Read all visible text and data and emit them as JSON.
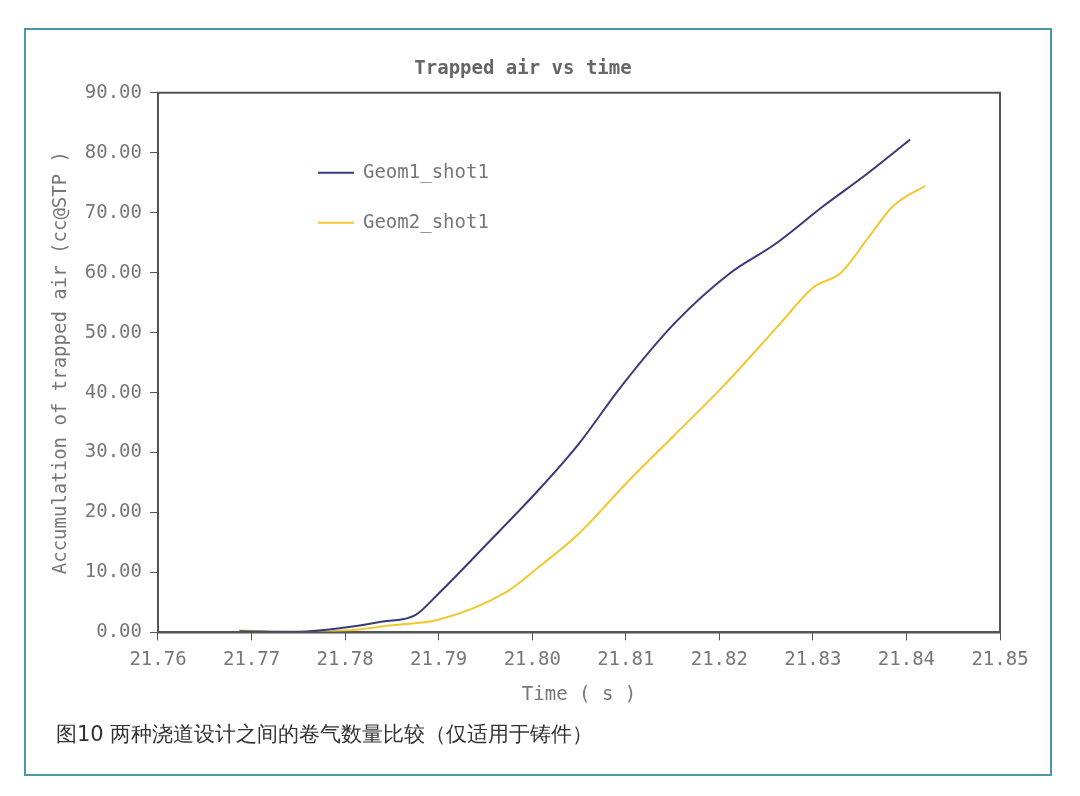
{
  "chart_data": {
    "type": "line",
    "title": "Trapped air vs time",
    "xlabel": "Time ( s )",
    "ylabel": "Accumulation of trapped air (cc@STP )",
    "annotations": [
      "图10 两种浇道设计之间的卷气数量比较（仅适用于铸件）"
    ],
    "series": [
      {
        "name": "Geom1_shot1",
        "color": "#3a3a78",
        "x": [
          21.7687,
          21.775,
          21.78,
          21.784,
          21.7875,
          21.79,
          21.795,
          21.8007,
          21.805,
          21.8095,
          21.8153,
          21.8212,
          21.8259,
          21.8312,
          21.8358,
          21.8404
        ],
        "values": [
          0.2,
          0.1,
          0.8,
          1.8,
          2.9,
          6.5,
          14.5,
          23.8,
          31.5,
          41,
          51.7,
          60,
          64.7,
          71.2,
          76.5,
          82.2
        ]
      },
      {
        "name": "Geom2_shot1",
        "color": "#f0c832",
        "x": [
          21.7687,
          21.775,
          21.78,
          21.785,
          21.79,
          21.7972,
          21.8007,
          21.805,
          21.81,
          21.815,
          21.8205,
          21.8265,
          21.83,
          21.833,
          21.836,
          21.8385,
          21.842
        ],
        "values": [
          0.3,
          0,
          0.3,
          1.2,
          2.1,
          6.7,
          10.9,
          16.5,
          24.8,
          32.6,
          41.2,
          51.5,
          57.5,
          60,
          66,
          71,
          74.5
        ]
      }
    ],
    "xlim": [
      21.76,
      21.85
    ],
    "xticks": [
      21.76,
      21.77,
      21.78,
      21.79,
      {
        "value": 21.8,
        "label": "21.80"
      },
      21.81,
      21.82,
      21.83,
      21.84,
      21.85
    ],
    "ylim": [
      0,
      90
    ],
    "yticks": [
      {
        "value": 0,
        "label": "0.00"
      },
      {
        "value": 10,
        "label": "10.00"
      },
      {
        "value": 20,
        "label": "20.00"
      },
      {
        "value": 30,
        "label": "30.00"
      },
      {
        "value": 40,
        "label": "40.00"
      },
      {
        "value": 50,
        "label": "50.00"
      },
      {
        "value": 60,
        "label": "60.00"
      },
      {
        "value": 70,
        "label": "70.00"
      },
      {
        "value": 80,
        "label": "80.00"
      },
      {
        "value": 90,
        "label": "90.00"
      }
    ],
    "grid": false,
    "legend": "top left",
    "marker": "none",
    "line_style": "solid"
  }
}
